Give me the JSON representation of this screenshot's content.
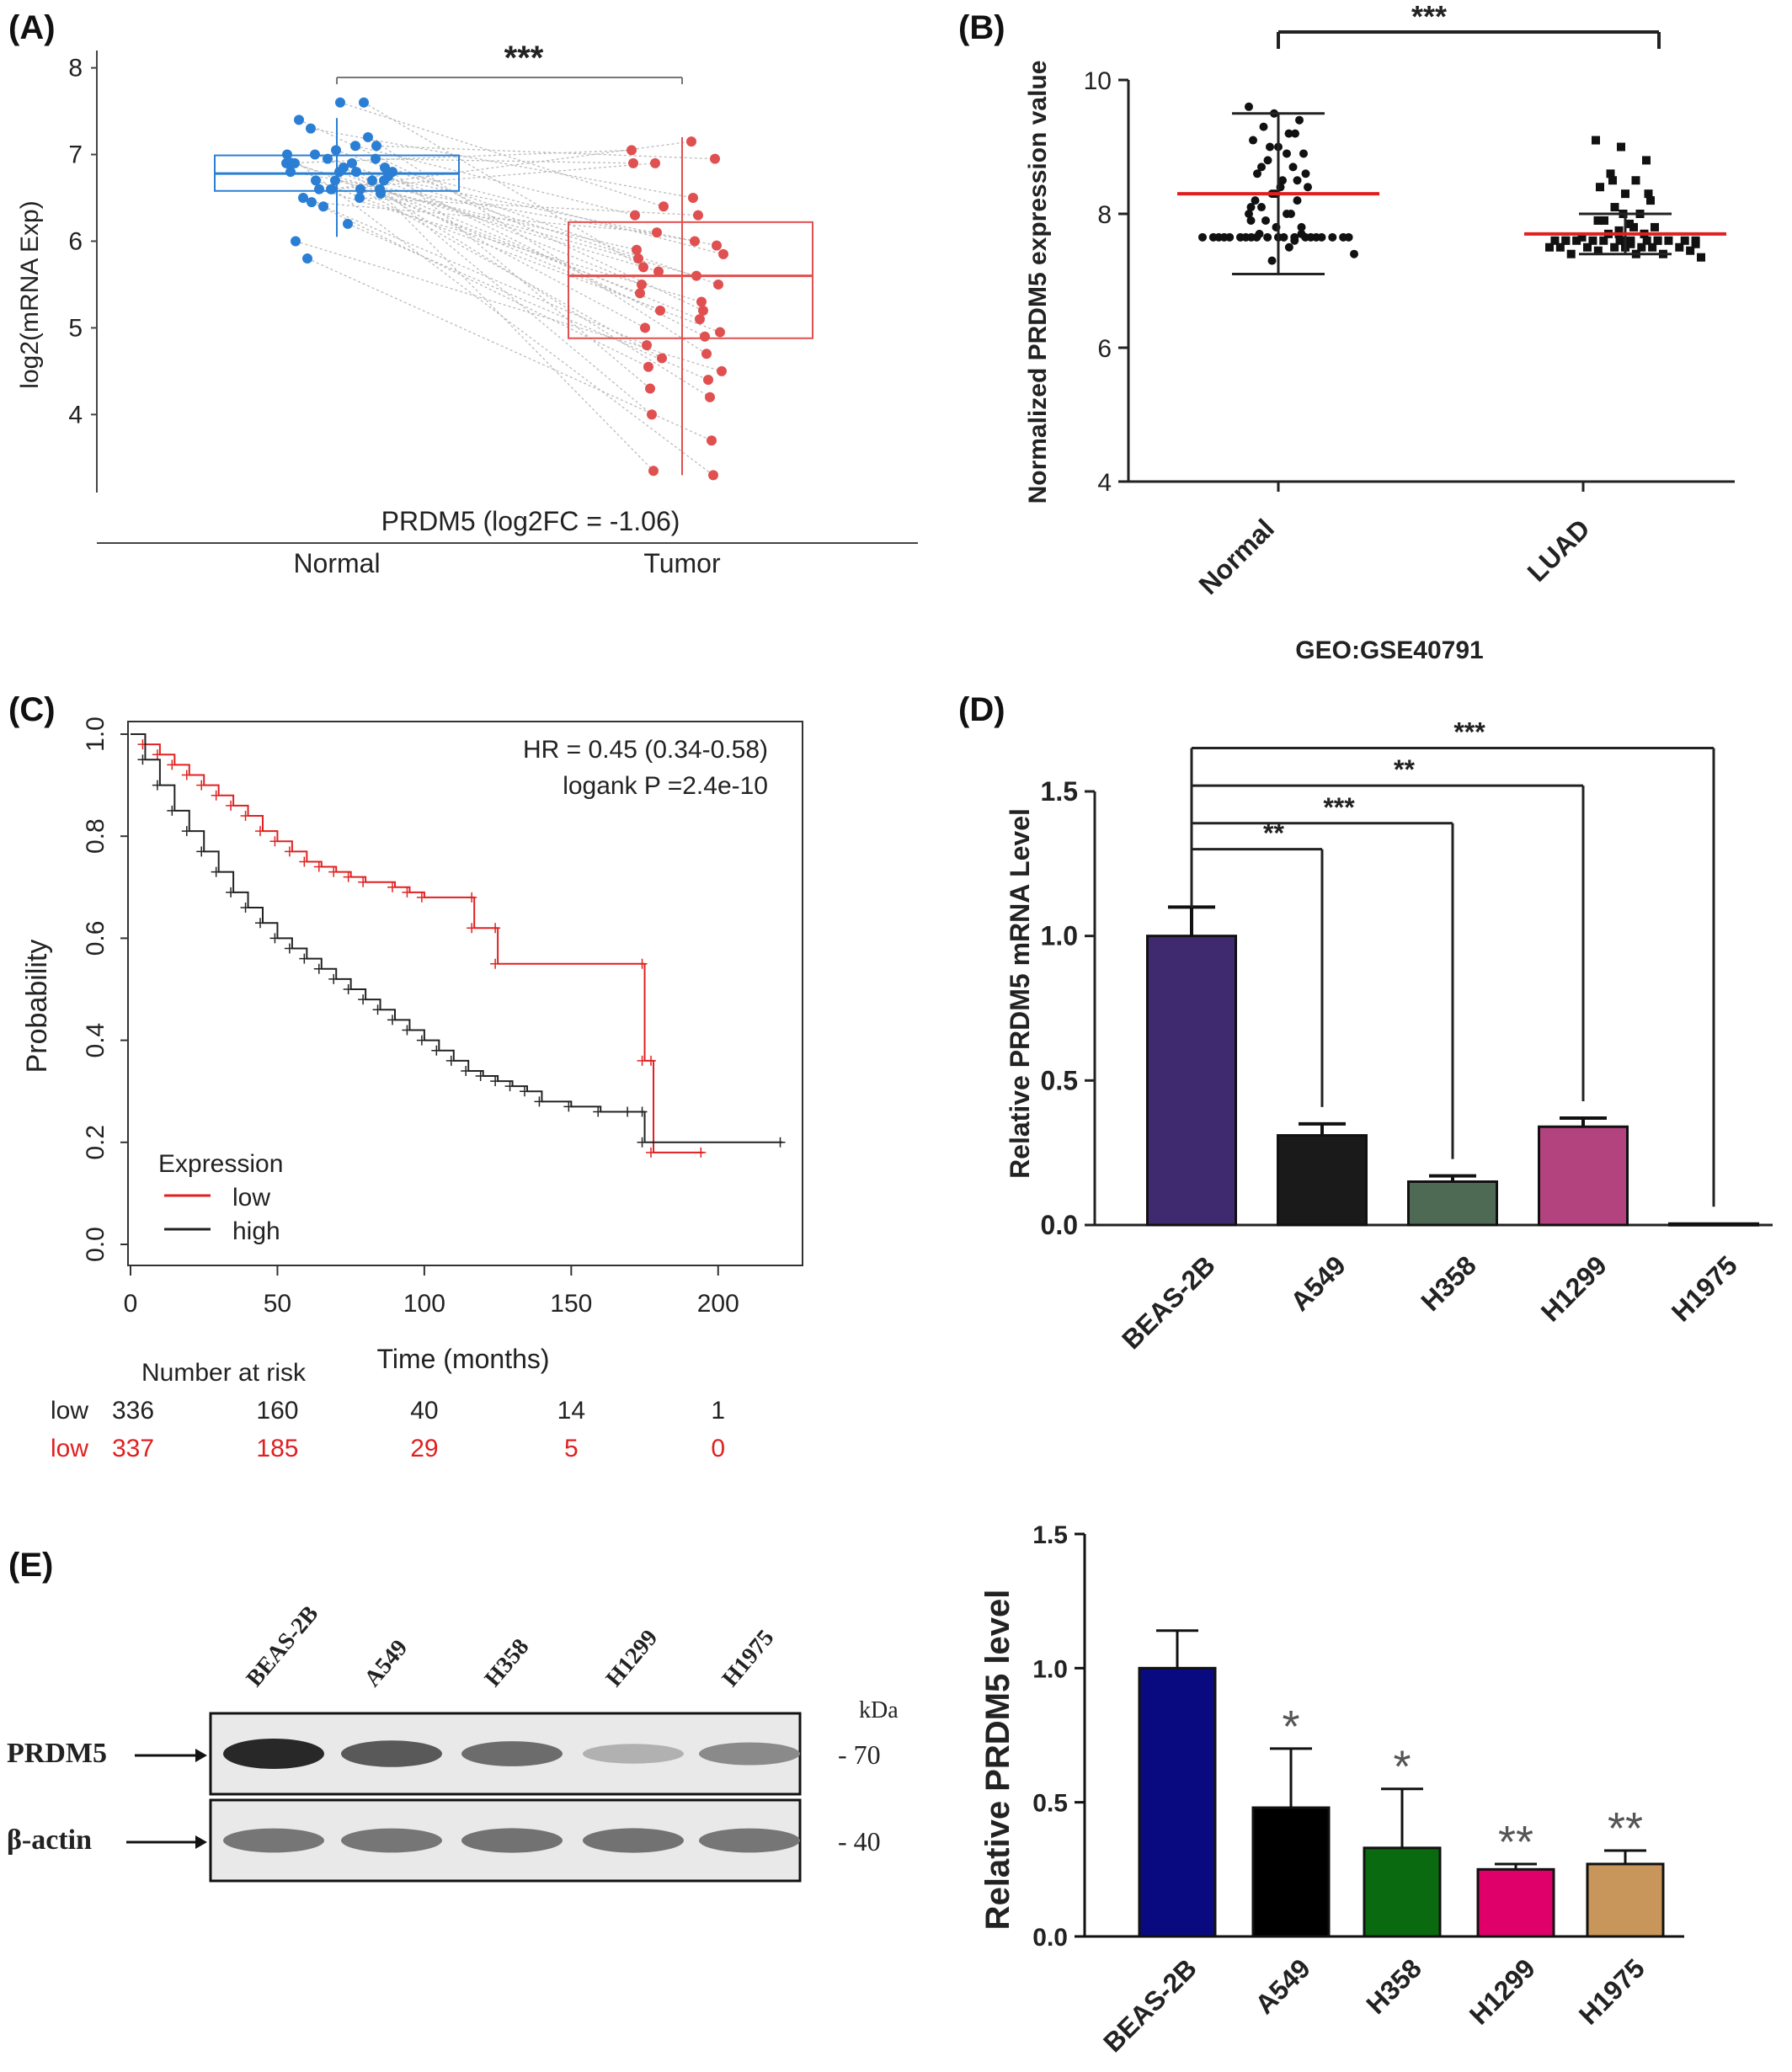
{
  "panels": {
    "A": {
      "label": "(A)",
      "chart_data": {
        "type": "box-paired",
        "ylabel": "log2(mRNA Exp)",
        "xlabel": "PRDM5 (log2FC = -1.06)",
        "categories": [
          "Normal",
          "Tumor"
        ],
        "yticks": [
          4,
          5,
          6,
          7,
          8
        ],
        "ylim": [
          3.1,
          8.2
        ],
        "significance": "***",
        "colors": {
          "Normal": "#2a7fd4",
          "Tumor": "#e05050"
        },
        "boxes": [
          {
            "name": "Normal",
            "q1": 6.58,
            "median": 6.78,
            "q3": 6.99,
            "whisker_low": 6.05,
            "whisker_high": 7.42
          },
          {
            "name": "Tumor",
            "q1": 4.88,
            "median": 5.6,
            "q3": 6.22,
            "whisker_low": 3.3,
            "whisker_high": 7.2
          }
        ],
        "pairs": [
          [
            6.9,
            7.05
          ],
          [
            6.6,
            7.15
          ],
          [
            6.95,
            6.9
          ],
          [
            7.3,
            6.5
          ],
          [
            7.1,
            6.3
          ],
          [
            6.8,
            6.0
          ],
          [
            6.7,
            5.9
          ],
          [
            6.6,
            5.6
          ],
          [
            7.0,
            5.8
          ],
          [
            6.5,
            6.3
          ],
          [
            6.9,
            5.4
          ],
          [
            6.8,
            5.1
          ],
          [
            6.7,
            5.5
          ],
          [
            6.6,
            5.3
          ],
          [
            7.6,
            5.7
          ],
          [
            7.4,
            5.2
          ],
          [
            6.85,
            5.0
          ],
          [
            6.75,
            4.9
          ],
          [
            6.4,
            4.8
          ],
          [
            7.2,
            4.7
          ],
          [
            6.5,
            4.55
          ],
          [
            6.2,
            4.4
          ],
          [
            6.8,
            4.3
          ],
          [
            6.95,
            4.2
          ],
          [
            6.7,
            4.0
          ],
          [
            5.8,
            3.7
          ],
          [
            6.9,
            3.35
          ],
          [
            7.0,
            3.3
          ],
          [
            6.6,
            6.9
          ],
          [
            7.1,
            6.95
          ],
          [
            6.45,
            6.1
          ],
          [
            6.8,
            5.95
          ],
          [
            6.9,
            5.65
          ],
          [
            7.05,
            5.5
          ],
          [
            6.55,
            5.2
          ],
          [
            6.7,
            4.95
          ],
          [
            6.6,
            4.65
          ],
          [
            6.0,
            4.5
          ],
          [
            7.6,
            6.4
          ],
          [
            6.85,
            5.85
          ]
        ]
      }
    },
    "B": {
      "label": "(B)",
      "chart_data": {
        "type": "scatter-dot",
        "ylabel": "Normalized PRDM5 expression value",
        "categories": [
          "Normal",
          "LUAD"
        ],
        "caption": "GEO:GSE40791",
        "yticks": [
          4,
          6,
          8,
          10
        ],
        "ylim": [
          4,
          10
        ],
        "significance": "***",
        "series": [
          {
            "name": "Normal",
            "mean": 8.3,
            "sd_low": 7.1,
            "sd_high": 9.5,
            "values": [
              9.6,
              9.5,
              9.4,
              9.3,
              9.2,
              9.1,
              9.0,
              8.9,
              8.8,
              8.7,
              8.6,
              8.5,
              8.4,
              8.3,
              8.2,
              8.1,
              8.0,
              7.9,
              7.8,
              7.7,
              7.65,
              7.65,
              7.65,
              7.65,
              7.65,
              7.65,
              7.65,
              7.65,
              7.65,
              7.65,
              7.65,
              7.65,
              7.65,
              7.65,
              7.65,
              7.65,
              7.65,
              7.65,
              7.65,
              7.65,
              7.5,
              7.4,
              7.3,
              8.5,
              8.7,
              8.9,
              8.1,
              8.3,
              7.8,
              7.9,
              8.0,
              8.2,
              8.4,
              8.6,
              9.0,
              9.2,
              7.7,
              7.6,
              8.0,
              8.3
            ]
          },
          {
            "name": "LUAD",
            "mean": 7.7,
            "sd_low": 7.4,
            "sd_high": 8.0,
            "values": [
              9.1,
              9.0,
              8.8,
              8.6,
              8.5,
              8.4,
              8.3,
              8.2,
              8.1,
              8.0,
              7.9,
              7.85,
              7.8,
              7.75,
              7.7,
              7.65,
              7.6,
              7.6,
              7.6,
              7.6,
              7.6,
              7.6,
              7.6,
              7.6,
              7.6,
              7.6,
              7.6,
              7.6,
              7.5,
              7.5,
              7.5,
              7.5,
              7.5,
              7.5,
              7.5,
              7.5,
              7.45,
              7.45,
              7.4,
              7.4,
              7.4,
              7.35,
              7.7,
              7.7,
              7.7,
              7.8,
              7.9,
              8.0,
              8.3,
              8.5,
              7.6,
              7.6,
              7.55,
              7.55
            ]
          }
        ]
      }
    },
    "C": {
      "label": "(C)",
      "chart_data": {
        "type": "km-survival",
        "xlabel": "Time (months)",
        "ylabel": "Probability",
        "xticks": [
          0,
          50,
          100,
          150,
          200
        ],
        "yticks": [
          "0.0",
          "0.2",
          "0.4",
          "0.6",
          "0.8",
          "1.0"
        ],
        "xlim": [
          0,
          225
        ],
        "ylim": [
          0,
          1
        ],
        "hr_text": "HR = 0.45 (0.34-0.58)",
        "logrank_text": "logank P =2.4e-10",
        "legend_title": "Expression",
        "legend": [
          {
            "name": "low",
            "color": "#e02020"
          },
          {
            "name": "high",
            "color": "#222222"
          }
        ],
        "series": [
          {
            "name": "low",
            "color": "#e02020",
            "points": [
              [
                0,
                1.0
              ],
              [
                5,
                0.98
              ],
              [
                10,
                0.96
              ],
              [
                15,
                0.94
              ],
              [
                20,
                0.92
              ],
              [
                25,
                0.9
              ],
              [
                30,
                0.88
              ],
              [
                35,
                0.86
              ],
              [
                40,
                0.84
              ],
              [
                45,
                0.81
              ],
              [
                50,
                0.79
              ],
              [
                55,
                0.77
              ],
              [
                60,
                0.75
              ],
              [
                65,
                0.74
              ],
              [
                70,
                0.73
              ],
              [
                75,
                0.72
              ],
              [
                80,
                0.71
              ],
              [
                90,
                0.7
              ],
              [
                95,
                0.69
              ],
              [
                100,
                0.68
              ],
              [
                117,
                0.68
              ],
              [
                117,
                0.62
              ],
              [
                125,
                0.62
              ],
              [
                125,
                0.55
              ],
              [
                175,
                0.55
              ],
              [
                175,
                0.36
              ],
              [
                178,
                0.36
              ],
              [
                178,
                0.18
              ],
              [
                195,
                0.18
              ]
            ]
          },
          {
            "name": "high",
            "color": "#222222",
            "points": [
              [
                0,
                1.0
              ],
              [
                5,
                0.95
              ],
              [
                10,
                0.9
              ],
              [
                15,
                0.85
              ],
              [
                20,
                0.81
              ],
              [
                25,
                0.77
              ],
              [
                30,
                0.73
              ],
              [
                35,
                0.69
              ],
              [
                40,
                0.66
              ],
              [
                45,
                0.63
              ],
              [
                50,
                0.6
              ],
              [
                55,
                0.58
              ],
              [
                60,
                0.56
              ],
              [
                65,
                0.54
              ],
              [
                70,
                0.52
              ],
              [
                75,
                0.5
              ],
              [
                80,
                0.48
              ],
              [
                85,
                0.46
              ],
              [
                90,
                0.44
              ],
              [
                95,
                0.42
              ],
              [
                100,
                0.4
              ],
              [
                105,
                0.38
              ],
              [
                110,
                0.36
              ],
              [
                115,
                0.34
              ],
              [
                120,
                0.33
              ],
              [
                125,
                0.32
              ],
              [
                130,
                0.31
              ],
              [
                135,
                0.3
              ],
              [
                140,
                0.28
              ],
              [
                150,
                0.27
              ],
              [
                160,
                0.26
              ],
              [
                170,
                0.26
              ],
              [
                175,
                0.26
              ],
              [
                175,
                0.2
              ],
              [
                222,
                0.2
              ]
            ]
          }
        ],
        "risk_title": "Number at risk",
        "risk_rows": [
          {
            "name": "low",
            "color": "#222222",
            "values": [
              "336",
              "160",
              "40",
              "14",
              "1"
            ]
          },
          {
            "name": "low",
            "color": "#e02020",
            "values": [
              "337",
              "185",
              "29",
              "5",
              "0"
            ]
          }
        ]
      }
    },
    "D": {
      "label": "(D)",
      "chart_data": {
        "type": "bar",
        "ylabel": "Relative PRDM5 mRNA Level",
        "categories": [
          "BEAS-2B",
          "A549",
          "H358",
          "H1299",
          "H1975"
        ],
        "values": [
          1.0,
          0.31,
          0.15,
          0.34,
          0.005
        ],
        "errors": [
          0.1,
          0.04,
          0.02,
          0.03,
          0.0
        ],
        "colors": [
          "#3f2a70",
          "#1a1a1a",
          "#4f6a54",
          "#b3437e",
          "#555555"
        ],
        "yticks": [
          "0.0",
          "0.5",
          "1.0",
          "1.5"
        ],
        "ylim": [
          0,
          1.5
        ],
        "significance": [
          "**",
          "***",
          "**",
          "***"
        ]
      }
    },
    "E": {
      "label": "(E)",
      "blot": {
        "lanes": [
          "BEAS-2B",
          "A549",
          "H358",
          "H1299",
          "H1975"
        ],
        "rows": [
          {
            "label": "PRDM5",
            "marker": "- 70",
            "intensities": [
              1.0,
              0.75,
              0.65,
              0.3,
              0.5
            ]
          },
          {
            "label": "β-actin",
            "marker": "- 40",
            "intensities": [
              0.6,
              0.6,
              0.62,
              0.62,
              0.6
            ]
          }
        ],
        "unit": "kDa"
      },
      "chart_data": {
        "type": "bar",
        "ylabel": "Relative PRDM5 level",
        "categories": [
          "BEAS-2B",
          "A549",
          "H358",
          "H1299",
          "H1975"
        ],
        "values": [
          1.0,
          0.48,
          0.33,
          0.25,
          0.27
        ],
        "errors": [
          0.14,
          0.22,
          0.22,
          0.02,
          0.05
        ],
        "colors": [
          "#0a0a80",
          "#000000",
          "#0a6a10",
          "#e0006a",
          "#c8965a"
        ],
        "yticks": [
          "0.0",
          "0.5",
          "1.0",
          "1.5"
        ],
        "ylim": [
          0,
          1.5
        ],
        "significance": [
          "",
          "*",
          "*",
          "**",
          "**"
        ]
      }
    }
  }
}
